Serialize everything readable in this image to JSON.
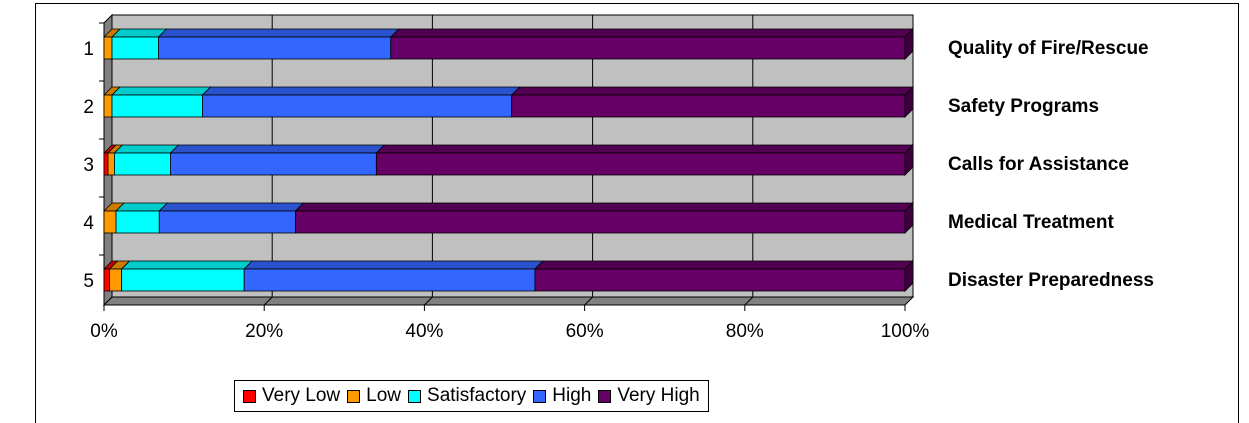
{
  "chart_data": {
    "type": "bar",
    "orientation": "horizontal",
    "stacked": "percent",
    "three_d": true,
    "categories": [
      "1",
      "2",
      "3",
      "4",
      "5"
    ],
    "category_labels": [
      "Quality of Fire/Rescue",
      "Safety Programs",
      "Calls for Assistance",
      "Medical Treatment",
      "Disaster Preparedness"
    ],
    "series": [
      {
        "name": "Very Low",
        "color": "#ff0000",
        "values": [
          0.0,
          0.0,
          0.5,
          0.0,
          0.7
        ]
      },
      {
        "name": "Low",
        "color": "#ff9900",
        "values": [
          1.0,
          1.0,
          0.8,
          1.5,
          1.5
        ]
      },
      {
        "name": "Satisfactory",
        "color": "#00ffff",
        "values": [
          5.8,
          11.3,
          7.0,
          5.4,
          15.3
        ]
      },
      {
        "name": "High",
        "color": "#3366ff",
        "values": [
          29.0,
          38.6,
          25.7,
          17.0,
          36.3
        ]
      },
      {
        "name": "Very High",
        "color": "#660066",
        "values": [
          64.2,
          49.1,
          66.0,
          76.1,
          46.2
        ]
      }
    ],
    "x_ticks": [
      "0%",
      "20%",
      "40%",
      "60%",
      "80%",
      "100%"
    ],
    "xlim": [
      0,
      100
    ],
    "grid": true,
    "legend_position": "bottom",
    "wall_color": "#c0c0c0"
  }
}
